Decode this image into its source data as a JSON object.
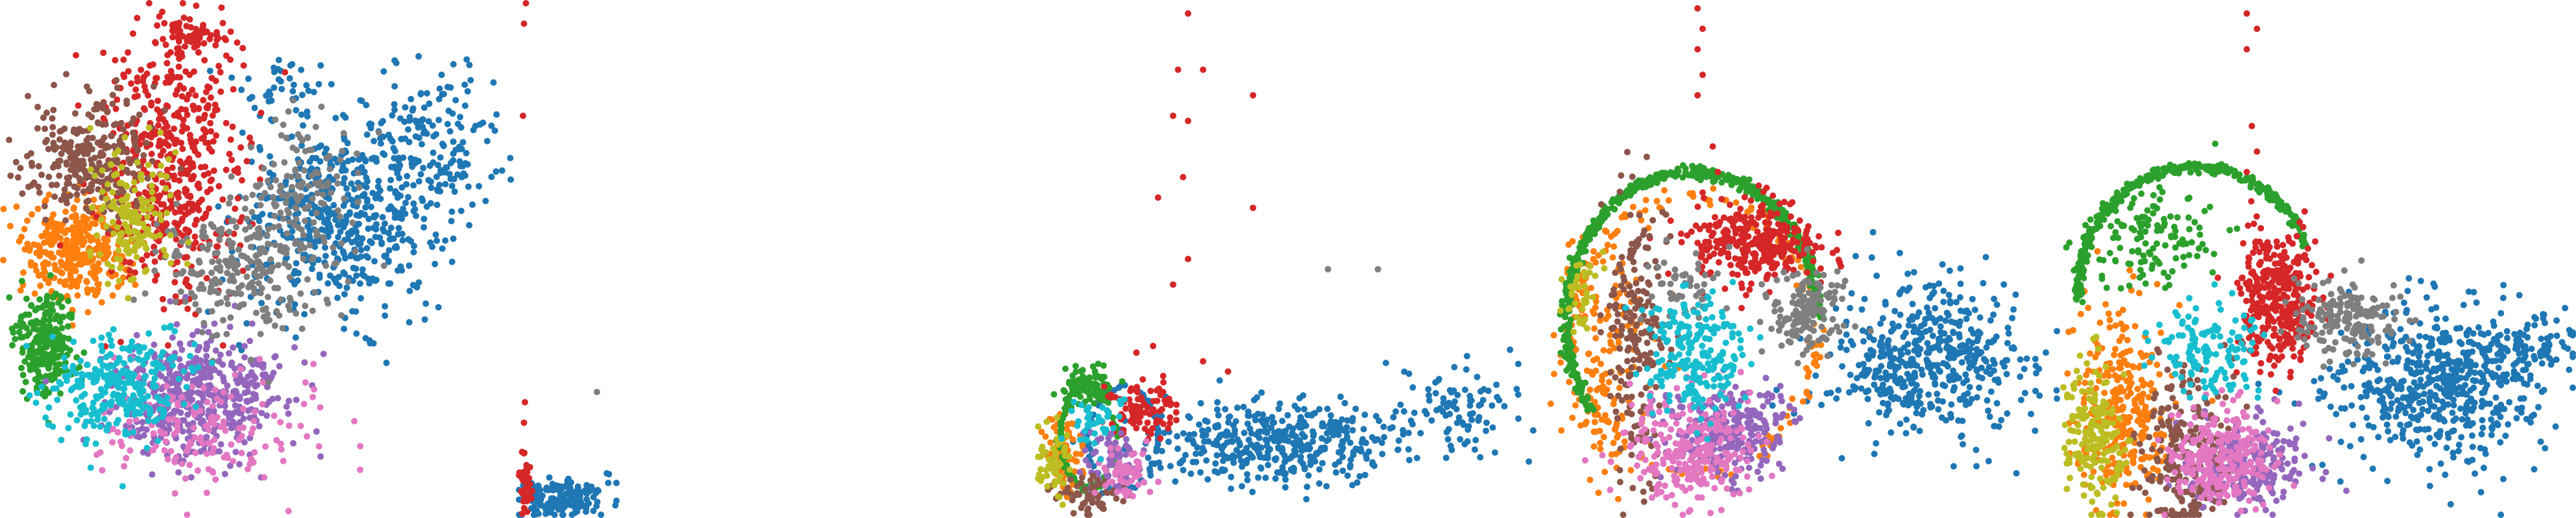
{
  "figure": {
    "type": "scatter",
    "panel_count": 5,
    "axes_visible": false,
    "grid": false,
    "legend": "none",
    "class_palette": [
      "#1f77b4",
      "#ff7f0e",
      "#2ca02c",
      "#d62728",
      "#9467bd",
      "#8c564b",
      "#e377c2",
      "#7f7f7f",
      "#bcbd22",
      "#17becf"
    ]
  },
  "chart_data": [
    {
      "type": "scatter",
      "title": "",
      "xlabel": "",
      "ylabel": "",
      "xlim": [
        0,
        1
      ],
      "ylim": [
        0,
        1
      ],
      "series": [
        {
          "color": "#1f77b4",
          "clusters": [
            {
              "x": 0.66,
              "y": 0.58,
              "sx": 0.1,
              "sy": 0.09,
              "n": 520
            },
            {
              "x": 0.84,
              "y": 0.73,
              "sx": 0.07,
              "sy": 0.08,
              "n": 150
            },
            {
              "x": 0.55,
              "y": 0.84,
              "sx": 0.05,
              "sy": 0.03,
              "n": 40
            }
          ]
        },
        {
          "color": "#ff7f0e",
          "clusters": [
            {
              "x": 0.15,
              "y": 0.52,
              "sx": 0.05,
              "sy": 0.05,
              "n": 350
            }
          ]
        },
        {
          "color": "#2ca02c",
          "clusters": [
            {
              "x": 0.08,
              "y": 0.34,
              "sx": 0.03,
              "sy": 0.05,
              "n": 240
            }
          ]
        },
        {
          "color": "#d62728",
          "clusters": [
            {
              "x": 0.33,
              "y": 0.68,
              "sx": 0.07,
              "sy": 0.13,
              "n": 520
            },
            {
              "x": 0.36,
              "y": 0.94,
              "sx": 0.03,
              "sy": 0.02,
              "n": 60
            }
          ]
        },
        {
          "color": "#9467bd",
          "clusters": [
            {
              "x": 0.38,
              "y": 0.23,
              "sx": 0.08,
              "sy": 0.06,
              "n": 480
            }
          ]
        },
        {
          "color": "#8c564b",
          "clusters": [
            {
              "x": 0.17,
              "y": 0.7,
              "sx": 0.06,
              "sy": 0.06,
              "n": 280
            }
          ]
        },
        {
          "color": "#e377c2",
          "clusters": [
            {
              "x": 0.4,
              "y": 0.16,
              "sx": 0.11,
              "sy": 0.06,
              "n": 160
            }
          ]
        },
        {
          "color": "#7f7f7f",
          "clusters": [
            {
              "x": 0.48,
              "y": 0.5,
              "sx": 0.09,
              "sy": 0.07,
              "n": 280
            },
            {
              "x": 0.58,
              "y": 0.66,
              "sx": 0.05,
              "sy": 0.06,
              "n": 80
            }
          ]
        },
        {
          "color": "#bcbd22",
          "clusters": [
            {
              "x": 0.25,
              "y": 0.58,
              "sx": 0.04,
              "sy": 0.06,
              "n": 160
            }
          ]
        },
        {
          "color": "#17becf",
          "clusters": [
            {
              "x": 0.23,
              "y": 0.25,
              "sx": 0.07,
              "sy": 0.05,
              "n": 280
            }
          ]
        }
      ]
    },
    {
      "type": "scatter",
      "title": "",
      "xlabel": "",
      "ylabel": "",
      "xlim": [
        0,
        1
      ],
      "ylim": [
        0,
        1
      ],
      "series": [
        {
          "color": "#1f77b4",
          "clusters": [
            {
              "x": 0.45,
              "y": 0.03,
              "sx": 0.22,
              "sy": 0.02,
              "n": 160
            }
          ]
        },
        {
          "color": "#d62728",
          "clusters": [
            {
              "x": 0.07,
              "y": 0.06,
              "sx": 0.03,
              "sy": 0.03,
              "n": 40
            }
          ],
          "line_points": [
            {
              "x": 0.05,
              "y": 0.12
            },
            {
              "x": 0.05,
              "y": 0.18
            },
            {
              "x": 0.06,
              "y": 0.22
            },
            {
              "x": 0.04,
              "y": 0.78
            },
            {
              "x": 0.05,
              "y": 0.96
            },
            {
              "x": 0.07,
              "y": 1.0
            }
          ]
        },
        {
          "color": "#7f7f7f",
          "points": [
            {
              "x": 0.8,
              "y": 0.24
            }
          ]
        }
      ]
    },
    {
      "type": "scatter",
      "title": "",
      "xlabel": "",
      "ylabel": "",
      "xlim": [
        0,
        1
      ],
      "ylim": [
        0,
        1
      ],
      "series": [
        {
          "color": "#1f77b4",
          "clusters": [
            {
              "x": 0.47,
              "y": 0.14,
              "sx": 0.13,
              "sy": 0.04,
              "n": 420
            },
            {
              "x": 0.85,
              "y": 0.2,
              "sx": 0.06,
              "sy": 0.04,
              "n": 90
            }
          ],
          "ring": {
            "cx": 0.17,
            "cy": 0.15,
            "rx": 0.07,
            "ry": 0.1,
            "n": 80
          }
        },
        {
          "color": "#ff7f0e",
          "clusters": [
            {
              "x": 0.05,
              "y": 0.12,
              "sx": 0.02,
              "sy": 0.04,
              "n": 90
            }
          ]
        },
        {
          "color": "#2ca02c",
          "clusters": [
            {
              "x": 0.1,
              "y": 0.25,
              "sx": 0.03,
              "sy": 0.02,
              "n": 80
            }
          ],
          "ring": {
            "cx": 0.1,
            "cy": 0.15,
            "rx": 0.055,
            "ry": 0.1,
            "n": 100
          }
        },
        {
          "color": "#d62728",
          "clusters": [
            {
              "x": 0.2,
              "y": 0.2,
              "sx": 0.04,
              "sy": 0.03,
              "n": 90
            }
          ],
          "points": [
            {
              "x": 0.3,
              "y": 0.98
            },
            {
              "x": 0.28,
              "y": 0.87
            },
            {
              "x": 0.33,
              "y": 0.87
            },
            {
              "x": 0.27,
              "y": 0.78
            },
            {
              "x": 0.3,
              "y": 0.77
            },
            {
              "x": 0.43,
              "y": 0.82
            },
            {
              "x": 0.29,
              "y": 0.66
            },
            {
              "x": 0.24,
              "y": 0.62
            },
            {
              "x": 0.43,
              "y": 0.6
            },
            {
              "x": 0.3,
              "y": 0.5
            },
            {
              "x": 0.27,
              "y": 0.45
            },
            {
              "x": 0.23,
              "y": 0.33
            },
            {
              "x": 0.33,
              "y": 0.3
            },
            {
              "x": 0.38,
              "y": 0.28
            },
            {
              "x": 0.25,
              "y": 0.24
            }
          ]
        },
        {
          "color": "#9467bd",
          "clusters": [
            {
              "x": 0.15,
              "y": 0.1,
              "sx": 0.03,
              "sy": 0.03,
              "n": 60
            }
          ]
        },
        {
          "color": "#8c564b",
          "clusters": [
            {
              "x": 0.1,
              "y": 0.04,
              "sx": 0.04,
              "sy": 0.02,
              "n": 60
            }
          ]
        },
        {
          "color": "#e377c2",
          "clusters": [
            {
              "x": 0.18,
              "y": 0.08,
              "sx": 0.03,
              "sy": 0.03,
              "n": 50
            }
          ]
        },
        {
          "color": "#7f7f7f",
          "points": [
            {
              "x": 0.58,
              "y": 0.48
            },
            {
              "x": 0.68,
              "y": 0.48
            }
          ]
        },
        {
          "color": "#bcbd22",
          "clusters": [
            {
              "x": 0.03,
              "y": 0.1,
              "sx": 0.02,
              "sy": 0.03,
              "n": 60
            }
          ]
        },
        {
          "color": "#17becf",
          "clusters": [
            {
              "x": 0.12,
              "y": 0.18,
              "sx": 0.03,
              "sy": 0.03,
              "n": 40
            }
          ]
        }
      ]
    },
    {
      "type": "scatter",
      "title": "",
      "xlabel": "",
      "ylabel": "",
      "xlim": [
        0,
        1
      ],
      "ylim": [
        0,
        1
      ],
      "series": [
        {
          "color": "#1f77b4",
          "clusters": [
            {
              "x": 0.75,
              "y": 0.3,
              "sx": 0.1,
              "sy": 0.07,
              "n": 500
            }
          ]
        },
        {
          "color": "#ff7f0e",
          "clusters": [
            {
              "x": 0.1,
              "y": 0.3,
              "sx": 0.05,
              "sy": 0.12,
              "n": 160
            }
          ],
          "ring": {
            "cx": 0.28,
            "cy": 0.35,
            "rx": 0.24,
            "ry": 0.27,
            "n": 160
          }
        },
        {
          "color": "#2ca02c",
          "arc": {
            "cx": 0.28,
            "cy": 0.38,
            "rx": 0.25,
            "ry": 0.29,
            "from": 0,
            "to": 3.8,
            "n": 500
          }
        },
        {
          "color": "#d62728",
          "clusters": [
            {
              "x": 0.4,
              "y": 0.53,
              "sx": 0.07,
              "sy": 0.04,
              "n": 320
            }
          ],
          "line_points": [
            {
              "x": 0.29,
              "y": 0.99
            },
            {
              "x": 0.3,
              "y": 0.95
            },
            {
              "x": 0.29,
              "y": 0.91
            },
            {
              "x": 0.3,
              "y": 0.86
            },
            {
              "x": 0.29,
              "y": 0.82
            },
            {
              "x": 0.32,
              "y": 0.72
            },
            {
              "x": 0.33,
              "y": 0.67
            },
            {
              "x": 0.3,
              "y": 0.63
            }
          ]
        },
        {
          "color": "#9467bd",
          "clusters": [
            {
              "x": 0.35,
              "y": 0.16,
              "sx": 0.06,
              "sy": 0.05,
              "n": 260
            }
          ]
        },
        {
          "color": "#8c564b",
          "clusters": [
            {
              "x": 0.17,
              "y": 0.35,
              "sx": 0.03,
              "sy": 0.15,
              "n": 200
            }
          ]
        },
        {
          "color": "#e377c2",
          "clusters": [
            {
              "x": 0.27,
              "y": 0.13,
              "sx": 0.06,
              "sy": 0.05,
              "n": 260
            }
          ]
        },
        {
          "color": "#7f7f7f",
          "clusters": [
            {
              "x": 0.5,
              "y": 0.4,
              "sx": 0.04,
              "sy": 0.04,
              "n": 140
            },
            {
              "x": 0.27,
              "y": 0.45,
              "sx": 0.04,
              "sy": 0.04,
              "n": 50
            }
          ]
        },
        {
          "color": "#bcbd22",
          "clusters": [
            {
              "x": 0.06,
              "y": 0.42,
              "sx": 0.02,
              "sy": 0.04,
              "n": 40
            }
          ]
        },
        {
          "color": "#17becf",
          "clusters": [
            {
              "x": 0.29,
              "y": 0.32,
              "sx": 0.05,
              "sy": 0.06,
              "n": 220
            }
          ]
        }
      ]
    },
    {
      "type": "scatter",
      "title": "",
      "xlabel": "",
      "ylabel": "",
      "xlim": [
        0,
        1
      ],
      "ylim": [
        0,
        1
      ],
      "series": [
        {
          "color": "#1f77b4",
          "clusters": [
            {
              "x": 0.74,
              "y": 0.26,
              "sx": 0.1,
              "sy": 0.08,
              "n": 560
            },
            {
              "x": 0.92,
              "y": 0.32,
              "sx": 0.05,
              "sy": 0.03,
              "n": 90
            }
          ]
        },
        {
          "color": "#ff7f0e",
          "clusters": [
            {
              "x": 0.12,
              "y": 0.2,
              "sx": 0.05,
              "sy": 0.1,
              "n": 300
            }
          ]
        },
        {
          "color": "#2ca02c",
          "clusters": [
            {
              "x": 0.17,
              "y": 0.55,
              "sx": 0.06,
              "sy": 0.05,
              "n": 130
            }
          ],
          "arc": {
            "cx": 0.26,
            "cy": 0.44,
            "rx": 0.23,
            "ry": 0.24,
            "from": 0.35,
            "to": 3.25,
            "n": 350
          }
        },
        {
          "color": "#d62728",
          "clusters": [
            {
              "x": 0.42,
              "y": 0.42,
              "sx": 0.04,
              "sy": 0.07,
              "n": 350
            }
          ],
          "line_points": [
            {
              "x": 0.36,
              "y": 0.98
            },
            {
              "x": 0.38,
              "y": 0.95
            },
            {
              "x": 0.36,
              "y": 0.91
            },
            {
              "x": 0.37,
              "y": 0.76
            },
            {
              "x": 0.38,
              "y": 0.71
            },
            {
              "x": 0.36,
              "y": 0.67
            }
          ]
        },
        {
          "color": "#9467bd",
          "clusters": [
            {
              "x": 0.36,
              "y": 0.1,
              "sx": 0.06,
              "sy": 0.05,
              "n": 220
            }
          ]
        },
        {
          "color": "#8c564b",
          "clusters": [
            {
              "x": 0.24,
              "y": 0.12,
              "sx": 0.04,
              "sy": 0.09,
              "n": 220
            }
          ]
        },
        {
          "color": "#e377c2",
          "clusters": [
            {
              "x": 0.31,
              "y": 0.11,
              "sx": 0.05,
              "sy": 0.05,
              "n": 260
            }
          ]
        },
        {
          "color": "#7f7f7f",
          "clusters": [
            {
              "x": 0.56,
              "y": 0.38,
              "sx": 0.05,
              "sy": 0.04,
              "n": 170
            }
          ]
        },
        {
          "color": "#bcbd22",
          "clusters": [
            {
              "x": 0.06,
              "y": 0.16,
              "sx": 0.03,
              "sy": 0.07,
              "n": 180
            }
          ]
        },
        {
          "color": "#17becf",
          "clusters": [
            {
              "x": 0.28,
              "y": 0.33,
              "sx": 0.05,
              "sy": 0.05,
              "n": 130
            }
          ]
        }
      ]
    }
  ]
}
